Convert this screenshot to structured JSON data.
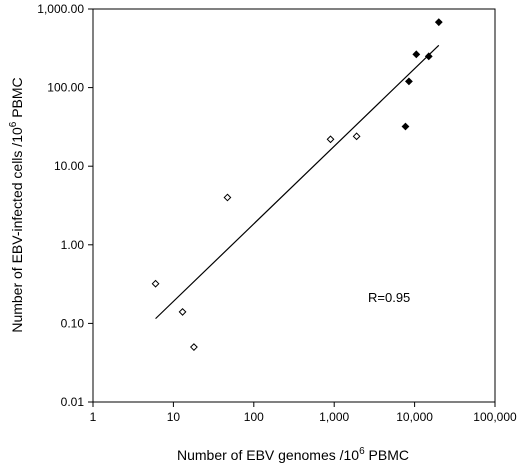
{
  "chart_data": {
    "type": "scatter",
    "xscale": "log",
    "yscale": "log",
    "xlim": [
      1,
      100000
    ],
    "ylim": [
      0.01,
      1000
    ],
    "grid": false,
    "legend": "none",
    "xlabel": {
      "main": "Number of EBV genomes /10",
      "sup": "6",
      "tail": " PBMC"
    },
    "ylabel": {
      "main": "Number of EBV-infected cells /10",
      "sup": "6",
      "tail": " PBMC"
    },
    "x_tick_labels": [
      {
        "value": 1,
        "label": "1"
      },
      {
        "value": 10,
        "label": "10"
      },
      {
        "value": 100,
        "label": "100"
      },
      {
        "value": 1000,
        "label": "1,000"
      },
      {
        "value": 10000,
        "label": "10,000"
      },
      {
        "value": 100000,
        "label": "100,000"
      }
    ],
    "y_tick_labels": [
      {
        "value": 0.01,
        "label": "0.01"
      },
      {
        "value": 0.1,
        "label": "0.10"
      },
      {
        "value": 1,
        "label": "1.00"
      },
      {
        "value": 10,
        "label": "10.00"
      },
      {
        "value": 100,
        "label": "100.00"
      },
      {
        "value": 1000,
        "label": "1,000.00"
      }
    ],
    "series": [
      {
        "marker": "open-diamond",
        "color": "#000000",
        "points": [
          {
            "x": 6,
            "y": 0.32
          },
          {
            "x": 13,
            "y": 0.14
          },
          {
            "x": 18,
            "y": 0.05
          },
          {
            "x": 47,
            "y": 4.0
          },
          {
            "x": 900,
            "y": 22
          },
          {
            "x": 1900,
            "y": 24
          }
        ]
      },
      {
        "marker": "filled-diamond",
        "color": "#000000",
        "points": [
          {
            "x": 7700,
            "y": 32
          },
          {
            "x": 8500,
            "y": 120
          },
          {
            "x": 10500,
            "y": 265
          },
          {
            "x": 15000,
            "y": 250
          },
          {
            "x": 20000,
            "y": 680
          }
        ]
      }
    ],
    "regression_line": {
      "x1": 6,
      "y1": 0.115,
      "x2": 20000,
      "y2": 345
    },
    "annotation": "R=0.95"
  }
}
